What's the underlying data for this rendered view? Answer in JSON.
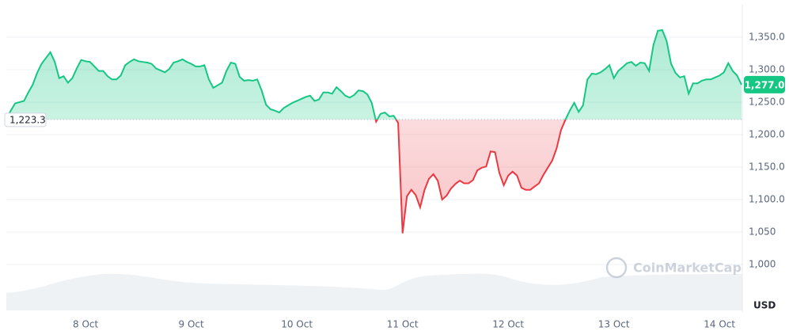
{
  "chart_data": {
    "type": "line",
    "categories": [
      null,
      null,
      null,
      null,
      null,
      null,
      null,
      null,
      null,
      null,
      null,
      null,
      null,
      null,
      null,
      null,
      null,
      null,
      "8 Oct",
      null,
      null,
      null,
      null,
      null,
      null,
      null,
      null,
      null,
      null,
      null,
      null,
      null,
      null,
      null,
      null,
      null,
      null,
      null,
      null,
      null,
      null,
      null,
      "9 Oct",
      null,
      null,
      null,
      null,
      null,
      null,
      null,
      null,
      null,
      null,
      null,
      null,
      null,
      null,
      null,
      null,
      null,
      null,
      null,
      null,
      null,
      null,
      null,
      "10 Oct",
      null,
      null,
      null,
      null,
      null,
      null,
      null,
      null,
      null,
      null,
      null,
      null,
      null,
      null,
      null,
      null,
      null,
      null,
      null,
      null,
      null,
      null,
      null,
      "11 Oct",
      null,
      null,
      null,
      null,
      null,
      null,
      null,
      null,
      null,
      null,
      null,
      null,
      null,
      null,
      null,
      null,
      null,
      null,
      null,
      null,
      null,
      null,
      null,
      "12 Oct",
      null,
      null,
      null,
      null,
      null,
      null,
      null,
      null,
      null,
      null,
      null,
      null,
      null,
      null,
      null,
      null,
      null,
      null,
      null,
      null,
      null,
      null,
      null,
      "13 Oct",
      null,
      null,
      null,
      null,
      null,
      null,
      null,
      null,
      null,
      null,
      null,
      null,
      null,
      null,
      null,
      null,
      null,
      null,
      null,
      null,
      null,
      null,
      null,
      "14 Oct",
      null,
      null,
      null,
      null,
      null
    ],
    "values": [
      1223.3,
      1237,
      1248,
      1250,
      1252,
      1265,
      1277,
      1295,
      1309,
      1318,
      1327,
      1312,
      1287,
      1290,
      1280,
      1287,
      1302,
      1315,
      1313,
      1312,
      1305,
      1298,
      1298,
      1290,
      1285,
      1285,
      1291,
      1307,
      1312,
      1316,
      1313,
      1312,
      1311,
      1309,
      1302,
      1299,
      1296,
      1301,
      1311,
      1313,
      1316,
      1312,
      1309,
      1305,
      1305,
      1307,
      1285,
      1272,
      1276,
      1280,
      1298,
      1311,
      1309,
      1289,
      1283,
      1284,
      1283,
      1285,
      1268,
      1246,
      1239,
      1237,
      1234,
      1241,
      1245,
      1249,
      1252,
      1255,
      1258,
      1260,
      1252,
      1254,
      1265,
      1265,
      1263,
      1273,
      1267,
      1260,
      1257,
      1261,
      1268,
      1267,
      1262,
      1249,
      1220,
      1232,
      1234,
      1228,
      1229,
      1218,
      1048,
      1105,
      1115,
      1107,
      1088,
      1115,
      1132,
      1139,
      1129,
      1100,
      1106,
      1117,
      1124,
      1129,
      1125,
      1125,
      1130,
      1145,
      1149,
      1151,
      1174,
      1173,
      1141,
      1122,
      1137,
      1143,
      1137,
      1118,
      1115,
      1115,
      1120,
      1125,
      1138,
      1149,
      1160,
      1179,
      1207,
      1223,
      1237,
      1249,
      1235,
      1245,
      1285,
      1294,
      1293,
      1296,
      1301,
      1307,
      1287,
      1298,
      1304,
      1310,
      1312,
      1306,
      1311,
      1310,
      1298,
      1338,
      1360,
      1361,
      1344,
      1309,
      1295,
      1288,
      1290,
      1263,
      1279,
      1279,
      1283,
      1285,
      1285,
      1288,
      1291,
      1296,
      1310,
      1298,
      1291,
      1277
    ],
    "baseline": {
      "value": 1223.3,
      "label": "1,223.3"
    },
    "last_price": {
      "value": 1277,
      "label": "1,277.0"
    },
    "color_up": "#16c784",
    "color_down": "#ea3943",
    "ylim": [
      925.6,
      1400
    ],
    "yticks": [
      {
        "value": 1000,
        "label": "1,000"
      },
      {
        "value": 1050,
        "label": "1,050"
      },
      {
        "value": 1100,
        "label": "1,100.0"
      },
      {
        "value": 1150,
        "label": "1,150.0"
      },
      {
        "value": 1200,
        "label": "1,200.0"
      },
      {
        "value": 1250,
        "label": "1,250.0"
      },
      {
        "value": 1300,
        "label": "1,300.0"
      },
      {
        "value": 1350,
        "label": "1,350.0"
      }
    ],
    "y_axis_label": "USD",
    "watermark": "CoinMarketCap",
    "grid": true
  }
}
